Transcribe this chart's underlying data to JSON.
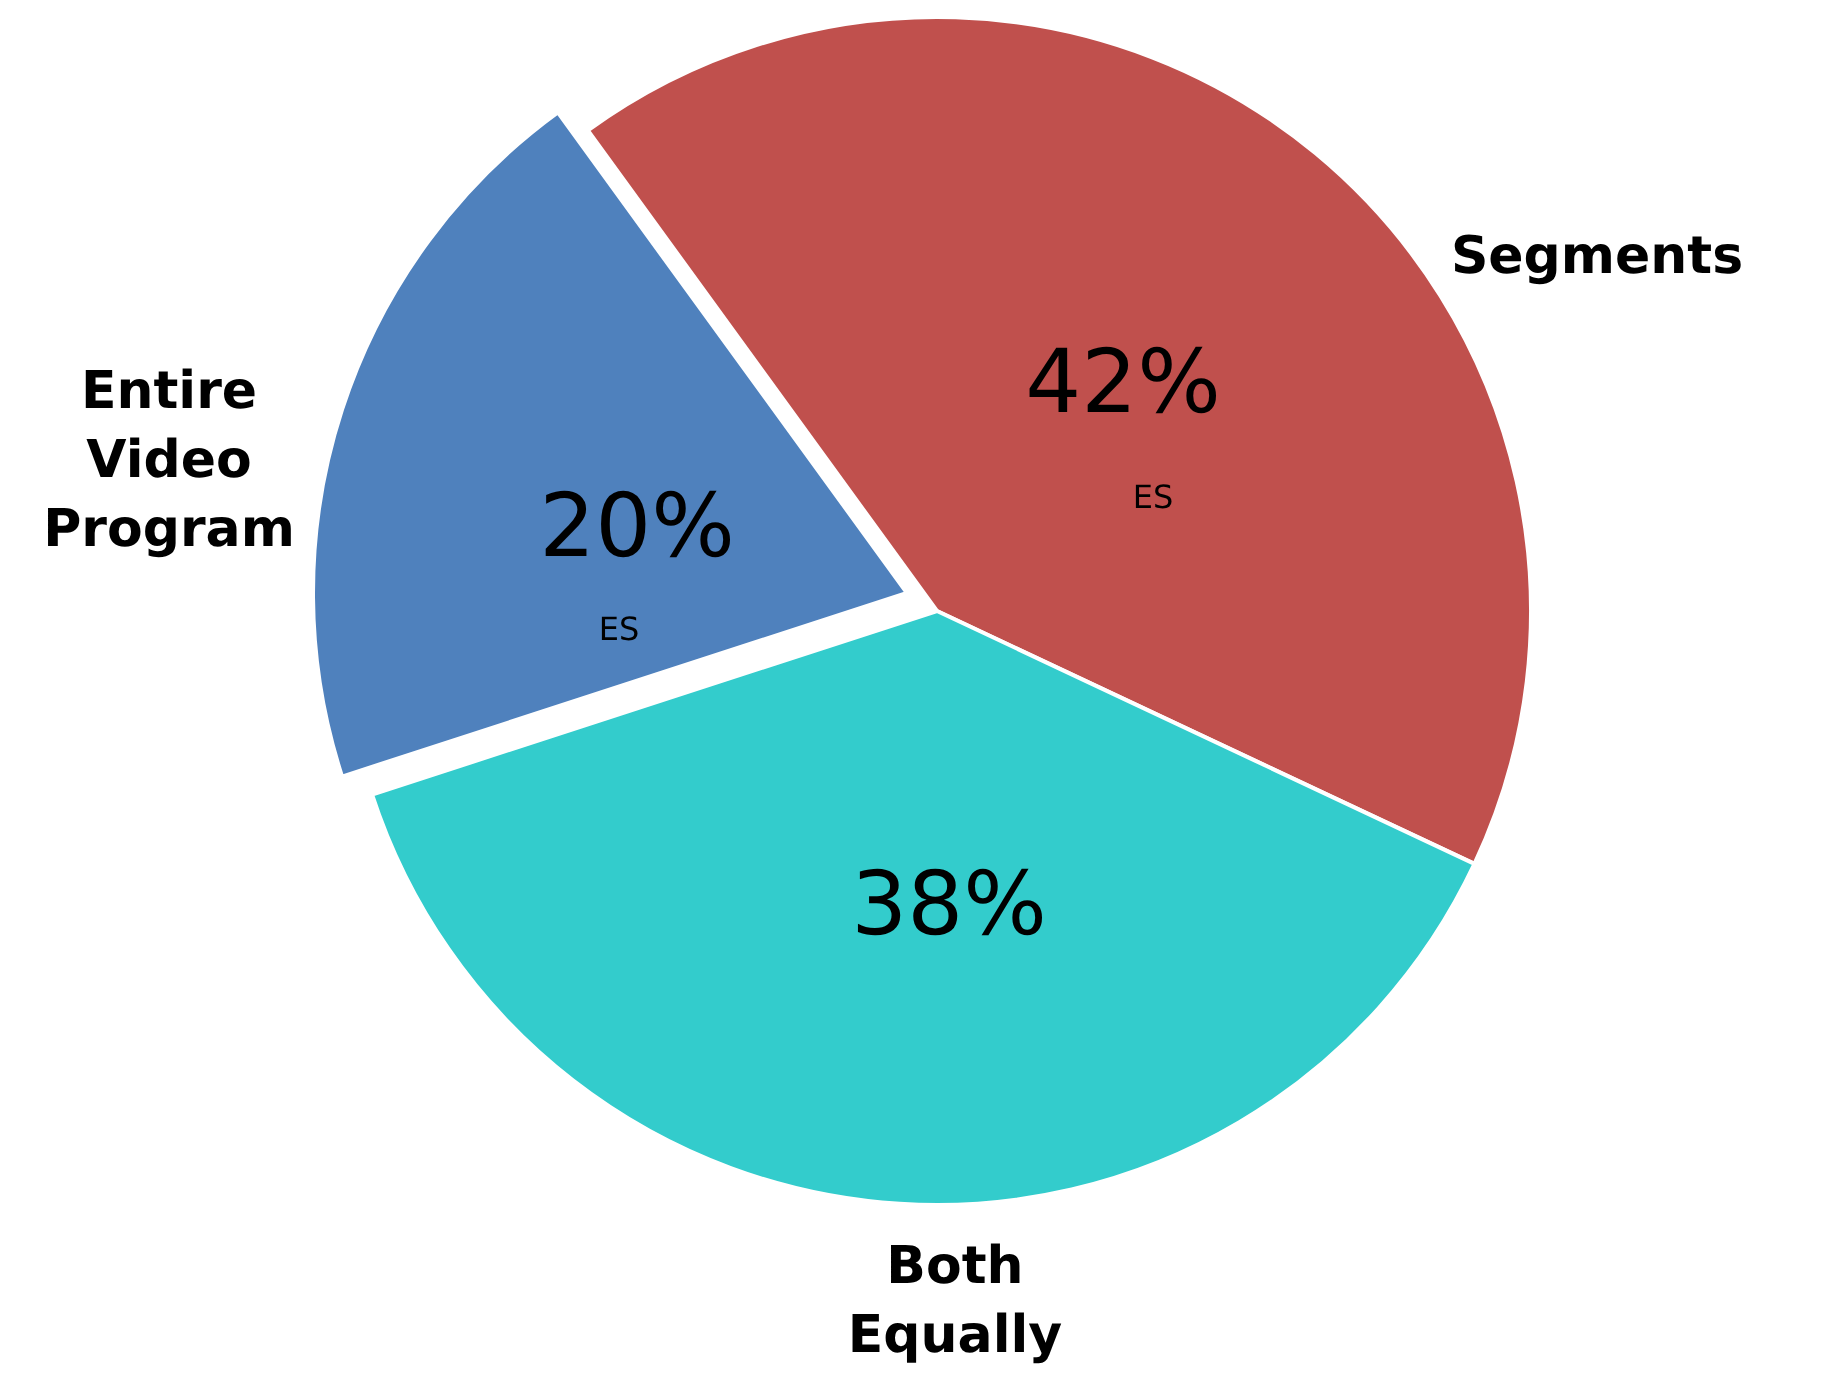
{
  "chart_data": {
    "type": "pie",
    "categories": [
      "Segments",
      "Both Equally",
      "Entire Video Program"
    ],
    "values": [
      42,
      38,
      20
    ],
    "colors": [
      "#c0504d",
      "#33cccc",
      "#4f81bd"
    ],
    "value_labels": [
      "42%",
      "38%",
      "20%"
    ],
    "annotations": [
      {
        "text": "ES",
        "x": "Segments"
      },
      {
        "text": "ES",
        "x": "Entire Video Program"
      }
    ]
  }
}
